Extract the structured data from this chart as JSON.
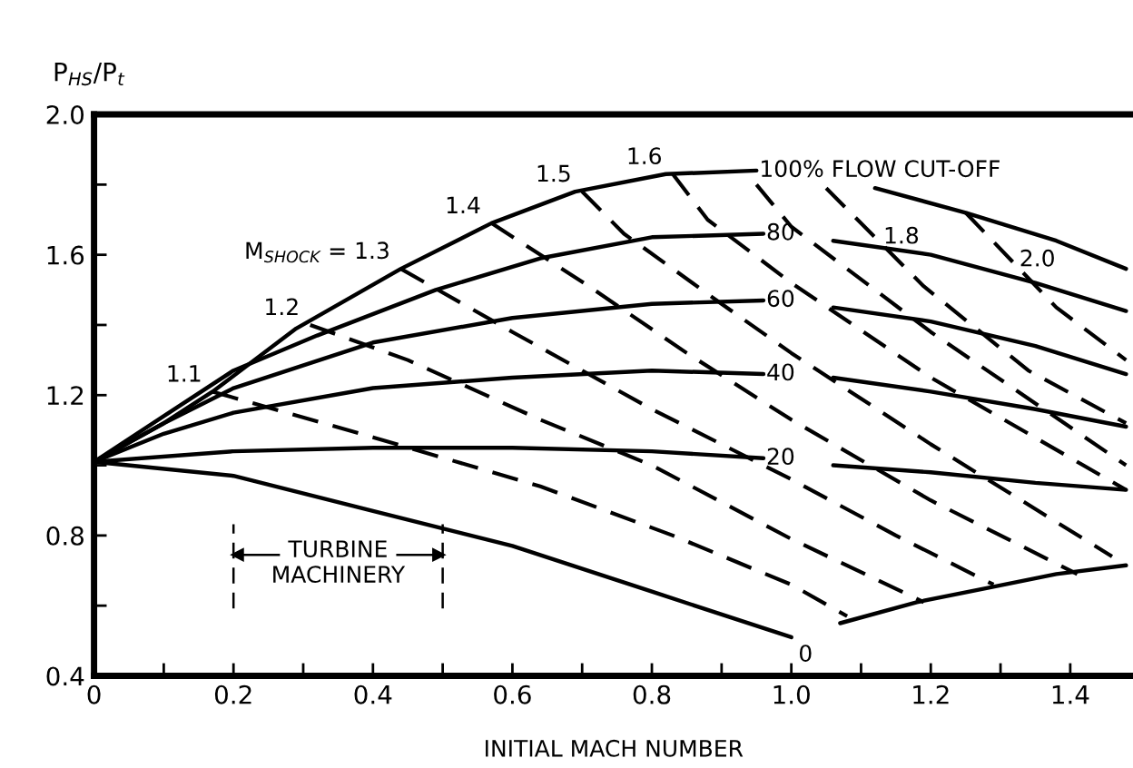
{
  "chart_data": {
    "type": "line",
    "xlabel": "INITIAL MACH NUMBER",
    "ylabel": "P$_{HS}$/P$_{t}$",
    "xlim": [
      0,
      1.49
    ],
    "ylim": [
      0.4,
      2.0
    ],
    "xticks": [
      0,
      {
        "value": 0.1,
        "label": null
      },
      0.2,
      {
        "value": 0.3,
        "label": null
      },
      0.4,
      {
        "value": 0.5,
        "label": null
      },
      0.6,
      {
        "value": 0.7,
        "label": null
      },
      0.8,
      {
        "value": 0.9,
        "label": null
      },
      {
        "value": 1.0,
        "label": "1.0"
      },
      {
        "value": 1.1,
        "label": null
      },
      1.2,
      {
        "value": 1.3,
        "label": null
      },
      1.4
    ],
    "yticks": [
      0.4,
      {
        "value": 0.6,
        "label": null
      },
      0.8,
      {
        "value": 1.0,
        "label": null
      },
      1.2,
      {
        "value": 1.4,
        "label": null
      },
      1.6,
      {
        "value": 1.8,
        "label": null
      },
      {
        "value": 2.0,
        "label": "2.0"
      }
    ],
    "grid": false,
    "series": [
      {
        "name": "100% FLOW CUT-OFF",
        "color": "#000000",
        "line_style": "solid",
        "x": [
          0,
          0.1,
          0.17,
          0.29,
          0.44,
          0.57,
          0.69,
          0.82,
          0.95,
          1.0,
          1.12,
          1.25,
          1.38,
          1.48
        ],
        "values": [
          1.01,
          1.12,
          1.21,
          1.39,
          1.56,
          1.69,
          1.78,
          1.83,
          1.84,
          null,
          1.79,
          1.72,
          1.64,
          1.56
        ]
      },
      {
        "name": "80",
        "color": "#000000",
        "line_style": "solid",
        "x": [
          0,
          0.1,
          0.2,
          0.32,
          0.49,
          0.64,
          0.8,
          0.96,
          1.0,
          1.06,
          1.2,
          1.35,
          1.48
        ],
        "values": [
          1.01,
          1.14,
          1.27,
          1.37,
          1.5,
          1.59,
          1.65,
          1.66,
          null,
          1.64,
          1.6,
          1.52,
          1.44
        ]
      },
      {
        "name": "60",
        "color": "#000000",
        "line_style": "solid",
        "x": [
          0,
          0.1,
          0.2,
          0.4,
          0.6,
          0.8,
          0.96,
          1.0,
          1.06,
          1.2,
          1.35,
          1.48
        ],
        "values": [
          1.01,
          1.12,
          1.22,
          1.35,
          1.42,
          1.46,
          1.47,
          null,
          1.45,
          1.41,
          1.34,
          1.26
        ]
      },
      {
        "name": "40",
        "color": "#000000",
        "line_style": "solid",
        "x": [
          0,
          0.1,
          0.2,
          0.4,
          0.6,
          0.8,
          0.96,
          1.0,
          1.06,
          1.2,
          1.35,
          1.48
        ],
        "values": [
          1.01,
          1.09,
          1.15,
          1.22,
          1.25,
          1.27,
          1.26,
          null,
          1.25,
          1.21,
          1.16,
          1.11
        ]
      },
      {
        "name": "20",
        "color": "#000000",
        "line_style": "solid",
        "x": [
          0,
          0.2,
          0.4,
          0.6,
          0.8,
          0.96,
          1.0,
          1.06,
          1.2,
          1.35,
          1.48
        ],
        "values": [
          1.01,
          1.04,
          1.05,
          1.05,
          1.04,
          1.02,
          null,
          1.0,
          0.98,
          0.95,
          0.93
        ]
      },
      {
        "name": "0",
        "color": "#000000",
        "line_style": "solid",
        "x": [
          0,
          0.2,
          0.4,
          0.6,
          0.8,
          1.0
        ],
        "values": [
          1.01,
          0.97,
          0.87,
          0.77,
          0.64,
          0.51
        ]
      },
      {
        "color": "#000000",
        "line_style": "solid",
        "x": [
          1.07,
          1.18,
          1.28,
          1.38,
          1.48
        ],
        "values": [
          0.55,
          0.61,
          0.65,
          0.69,
          0.715
        ]
      },
      {
        "name": "1.1",
        "color": "#000000",
        "line_style": "dashed",
        "x": [
          0.17,
          0.4,
          0.64,
          0.83,
          1.0,
          1.08
        ],
        "values": [
          1.21,
          1.08,
          0.94,
          0.8,
          0.66,
          0.57
        ]
      },
      {
        "name": "1.2",
        "color": "#000000",
        "line_style": "dashed",
        "x": [
          0.31,
          0.45,
          0.64,
          0.8,
          1.0,
          1.19
        ],
        "values": [
          1.4,
          1.3,
          1.13,
          1.0,
          0.79,
          0.61
        ]
      },
      {
        "name": "M$_{SHOCK}$ = 1.3",
        "color": "#000000",
        "line_style": "dashed",
        "x": [
          0.44,
          0.6,
          0.8,
          1.0,
          1.15,
          1.29
        ],
        "values": [
          1.56,
          1.38,
          1.16,
          0.96,
          0.8,
          0.66
        ]
      },
      {
        "name": "1.4",
        "color": "#000000",
        "line_style": "dashed",
        "x": [
          0.57,
          0.71,
          0.85,
          1.0,
          1.2,
          1.41
        ],
        "values": [
          1.69,
          1.51,
          1.32,
          1.13,
          0.9,
          0.69
        ]
      },
      {
        "name": "1.5",
        "color": "#000000",
        "line_style": "dashed",
        "x": [
          0.7,
          0.76,
          0.9,
          1.0,
          1.2,
          1.46
        ],
        "values": [
          1.78,
          1.66,
          1.46,
          1.32,
          1.06,
          0.74
        ]
      },
      {
        "name": "1.6",
        "color": "#000000",
        "line_style": "dashed",
        "x": [
          0.83,
          0.88,
          1.0,
          1.2,
          1.48
        ],
        "values": [
          1.83,
          1.7,
          1.52,
          1.25,
          0.93
        ]
      },
      {
        "color": "#000000",
        "line_style": "dashed",
        "x": [
          0.95,
          1.0,
          1.2,
          1.48
        ],
        "values": [
          1.8,
          1.68,
          1.38,
          1.0
        ]
      },
      {
        "name": "1.8",
        "color": "#000000",
        "line_style": "dashed",
        "x": [
          1.05,
          1.19,
          1.34,
          1.48
        ],
        "values": [
          1.79,
          1.51,
          1.27,
          1.12
        ]
      },
      {
        "name": "2.0",
        "color": "#000000",
        "line_style": "dashed",
        "x": [
          1.25,
          1.38,
          1.48
        ],
        "values": [
          1.72,
          1.45,
          1.3
        ]
      }
    ],
    "ref_lines": [
      {
        "axis": "x",
        "value": 0.2,
        "line_style": "dashed",
        "color": "#000000"
      },
      {
        "axis": "x",
        "value": 0.5,
        "line_style": "dashed",
        "color": "#000000"
      }
    ],
    "annotations": [
      "TURBINE\nMACHINERY"
    ]
  }
}
